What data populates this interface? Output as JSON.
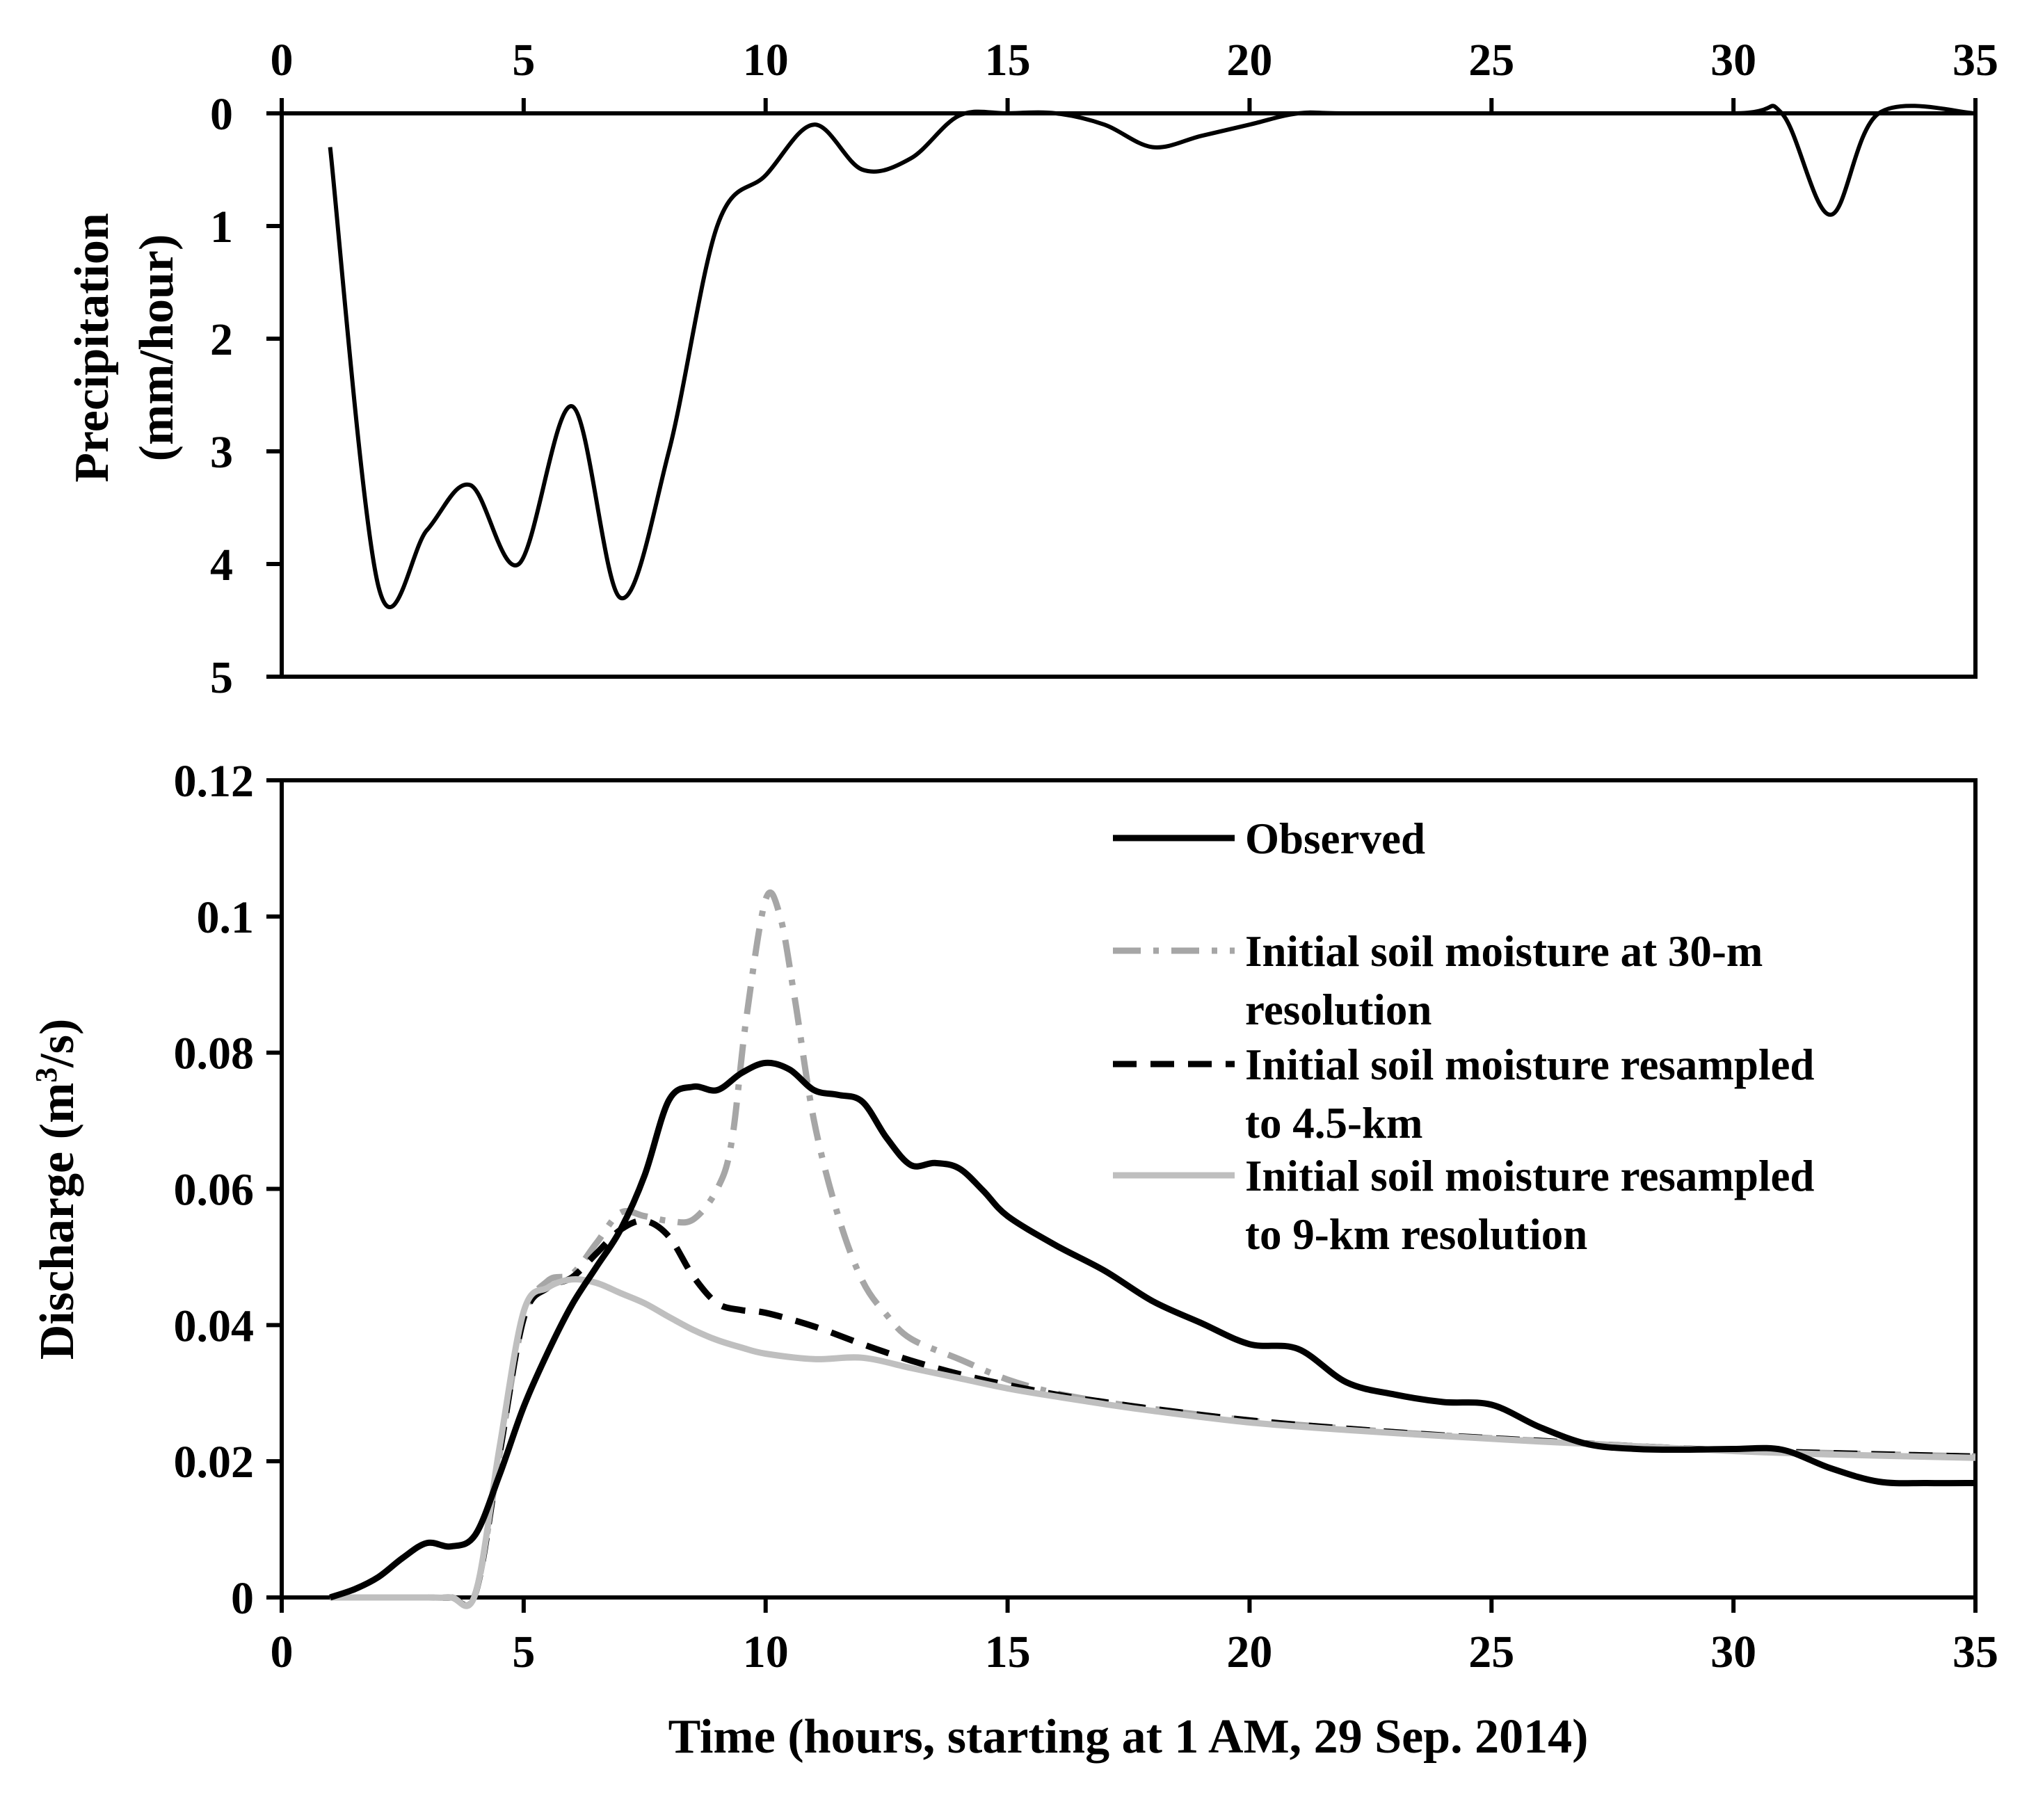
{
  "chart_data": [
    {
      "type": "line",
      "name": "precipitation",
      "ylabel_line1": "Precipitation",
      "ylabel_line2": "(mm/hour)",
      "xlim": [
        0,
        35
      ],
      "ylim": [
        0,
        5
      ],
      "y_inverted": true,
      "x_axis_position": "top",
      "x_ticks": [
        "0",
        "5",
        "10",
        "15",
        "20",
        "25",
        "30",
        "35"
      ],
      "y_ticks": [
        "0",
        "1",
        "2",
        "3",
        "4",
        "5"
      ],
      "series": [
        {
          "name": "Precipitation",
          "color": "#000000",
          "dash": "solid",
          "x": [
            1,
            2,
            3,
            3.9,
            4.9,
            6,
            7,
            8,
            9,
            10,
            11,
            12,
            13,
            14,
            15,
            16,
            17,
            18,
            19,
            20,
            21,
            22,
            25,
            30,
            31,
            32,
            33,
            35
          ],
          "y": [
            0.3,
            4.2,
            3.7,
            3.3,
            4.0,
            2.6,
            4.3,
            3.0,
            1.0,
            0.55,
            0.1,
            0.5,
            0.4,
            0.02,
            0.0,
            0.0,
            0.1,
            0.3,
            0.2,
            0.1,
            0.0,
            0.0,
            0.0,
            0.0,
            0.0,
            0.9,
            0.0,
            0.0
          ]
        }
      ]
    },
    {
      "type": "line",
      "name": "discharge",
      "ylabel_main": "Discharge (m",
      "ylabel_sup": "3",
      "ylabel_tail": "/s)",
      "xlabel": "Time (hours, starting at 1 AM, 29 Sep. 2014)",
      "xlim": [
        0,
        35
      ],
      "ylim": [
        0,
        0.12
      ],
      "x_ticks": [
        "0",
        "5",
        "10",
        "15",
        "20",
        "25",
        "30",
        "35"
      ],
      "y_ticks": [
        "0",
        "0.02",
        "0.04",
        "0.06",
        "0.08",
        "0.1",
        "0.12"
      ],
      "legend_position": "top-right",
      "series": [
        {
          "name": "Observed",
          "legend_lines": [
            "Observed"
          ],
          "color": "#000000",
          "dash": "solid",
          "x": [
            1,
            1.5,
            2,
            2.5,
            3,
            3.5,
            4,
            4.5,
            5,
            5.5,
            6,
            6.5,
            7,
            7.5,
            8,
            8.5,
            9,
            9.5,
            10,
            10.5,
            11,
            11.5,
            12,
            12.5,
            13,
            13.5,
            14,
            14.5,
            15,
            16,
            17,
            18,
            19,
            20,
            21,
            22,
            23,
            24,
            25,
            26,
            27,
            28,
            29,
            30,
            31,
            32,
            33,
            34,
            35
          ],
          "y": [
            0.0,
            0.0012,
            0.003,
            0.0058,
            0.008,
            0.0075,
            0.0092,
            0.018,
            0.028,
            0.036,
            0.043,
            0.0485,
            0.054,
            0.062,
            0.073,
            0.075,
            0.0745,
            0.077,
            0.0785,
            0.0775,
            0.0745,
            0.0738,
            0.0728,
            0.0675,
            0.0635,
            0.0638,
            0.063,
            0.0597,
            0.056,
            0.0517,
            0.048,
            0.0435,
            0.0403,
            0.0372,
            0.0365,
            0.0316,
            0.0298,
            0.0287,
            0.0283,
            0.025,
            0.0225,
            0.0218,
            0.0217,
            0.0218,
            0.0217,
            0.019,
            0.017,
            0.0168,
            0.0168
          ]
        },
        {
          "name": "Initial soil moisture at 30-m resolution",
          "legend_lines": [
            "Initial soil moisture at 30-m",
            "resolution"
          ],
          "color": "#a6a6a6",
          "dash": "dashdot",
          "x": [
            1,
            2,
            3,
            3.5,
            4.0,
            4.5,
            5,
            5.5,
            6,
            6.5,
            7,
            7.5,
            8,
            8.5,
            9,
            9.3,
            9.6,
            10,
            10.3,
            10.6,
            11,
            11.5,
            12,
            12.5,
            13,
            14,
            15,
            16,
            17,
            18,
            20,
            22,
            24,
            26,
            28,
            30,
            32,
            35
          ],
          "y": [
            0.0,
            0.0,
            0.0,
            0.0,
            0.0005,
            0.021,
            0.041,
            0.0465,
            0.0475,
            0.052,
            0.0565,
            0.056,
            0.0553,
            0.0555,
            0.06,
            0.067,
            0.085,
            0.1025,
            0.1,
            0.088,
            0.07,
            0.056,
            0.0465,
            0.0415,
            0.038,
            0.035,
            0.032,
            0.03,
            0.0287,
            0.0277,
            0.026,
            0.0248,
            0.0238,
            0.023,
            0.0222,
            0.0216,
            0.0212,
            0.0207
          ]
        },
        {
          "name": "Initial soil moisture resampled to 4.5-km",
          "legend_lines": [
            "Initial soil moisture resampled",
            "to 4.5-km"
          ],
          "color": "#000000",
          "dash": "dash",
          "x": [
            1,
            2,
            3,
            3.5,
            4.0,
            4.5,
            5,
            5.5,
            6,
            6.5,
            7,
            7.5,
            8,
            8.5,
            9,
            9.5,
            10,
            11,
            12,
            13,
            14,
            15,
            16,
            17,
            18,
            20,
            22,
            24,
            26,
            28,
            30,
            32,
            35
          ],
          "y": [
            0.0,
            0.0,
            0.0,
            0.0,
            0.0005,
            0.021,
            0.041,
            0.0455,
            0.047,
            0.0505,
            0.054,
            0.0553,
            0.053,
            0.0472,
            0.0432,
            0.0422,
            0.0418,
            0.0398,
            0.0372,
            0.0348,
            0.0328,
            0.0312,
            0.0298,
            0.0287,
            0.0277,
            0.026,
            0.0248,
            0.0238,
            0.023,
            0.0222,
            0.0216,
            0.0212,
            0.0207
          ]
        },
        {
          "name": "Initial soil moisture resampled to 9-km resolution",
          "legend_lines": [
            "Initial soil moisture resampled",
            "to 9-km resolution"
          ],
          "color": "#bfbfbf",
          "dash": "solid",
          "x": [
            1,
            2,
            3,
            3.5,
            4.0,
            4.5,
            5,
            5.5,
            6,
            6.5,
            7,
            7.5,
            8,
            8.5,
            9,
            9.5,
            10,
            11,
            12,
            13,
            14,
            15,
            16,
            17,
            18,
            20,
            22,
            24,
            26,
            28,
            30,
            32,
            35
          ],
          "y": [
            0.0,
            0.0,
            0.0,
            0.0,
            0.0005,
            0.022,
            0.042,
            0.0455,
            0.0467,
            0.0462,
            0.0447,
            0.0432,
            0.0412,
            0.0393,
            0.0378,
            0.0367,
            0.0358,
            0.035,
            0.0352,
            0.0337,
            0.0322,
            0.0307,
            0.0295,
            0.0284,
            0.0274,
            0.0257,
            0.0246,
            0.0237,
            0.0229,
            0.0222,
            0.0215,
            0.021,
            0.0205
          ]
        }
      ]
    }
  ]
}
